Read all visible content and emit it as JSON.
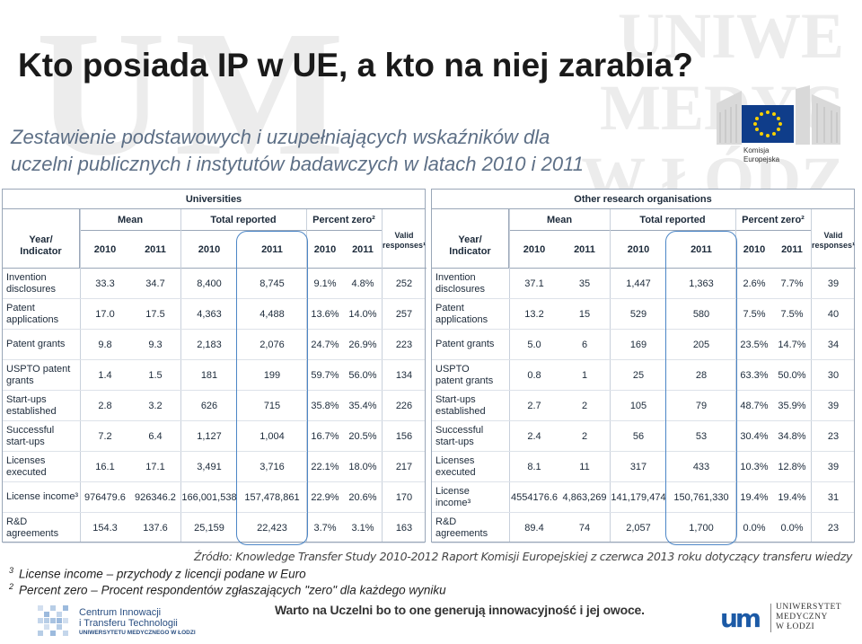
{
  "watermark": {
    "left": "UM",
    "right_lines": [
      "UNIWE",
      "MEDYC",
      "W ŁÓDZ"
    ]
  },
  "title": "Kto posiada IP w UE, a kto na niej zarabia?",
  "subtitle": "Zestawienie podstawowych i uzupełniających wskaźników dla uczelni publicznych i instytutów badawczych w latach 2010 i 2011",
  "ec_logo": {
    "caption_line1": "Komisja",
    "caption_line2": "Europejska"
  },
  "tables": [
    {
      "band": "Universities",
      "groups": {
        "mean": "Mean",
        "total": "Total reported",
        "percent": "Percent zero²",
        "valid": "Valid responses¹"
      },
      "indicator_header": [
        "Year/",
        "Indicator"
      ],
      "years": [
        "2010",
        "2011",
        "2010",
        "2011",
        "2010",
        "2011"
      ],
      "rows": [
        {
          "indicator": [
            "Invention",
            "disclosures"
          ],
          "cells": [
            "33.3",
            "34.7",
            "8,400",
            "8,745",
            "9.1%",
            "4.8%",
            "252"
          ]
        },
        {
          "indicator": [
            "Patent",
            "applications"
          ],
          "cells": [
            "17.0",
            "17.5",
            "4,363",
            "4,488",
            "13.6%",
            "14.0%",
            "257"
          ]
        },
        {
          "indicator": [
            "Patent grants",
            ""
          ],
          "cells": [
            "9.8",
            "9.3",
            "2,183",
            "2,076",
            "24.7%",
            "26.9%",
            "223"
          ]
        },
        {
          "indicator": [
            "USPTO patent",
            "grants"
          ],
          "cells": [
            "1.4",
            "1.5",
            "181",
            "199",
            "59.7%",
            "56.0%",
            "134"
          ]
        },
        {
          "indicator": [
            "Start-ups",
            "established"
          ],
          "cells": [
            "2.8",
            "3.2",
            "626",
            "715",
            "35.8%",
            "35.4%",
            "226"
          ]
        },
        {
          "indicator": [
            "Successful",
            "start-ups"
          ],
          "cells": [
            "7.2",
            "6.4",
            "1,127",
            "1,004",
            "16.7%",
            "20.5%",
            "156"
          ]
        },
        {
          "indicator": [
            "Licenses",
            "executed"
          ],
          "cells": [
            "16.1",
            "17.1",
            "3,491",
            "3,716",
            "22.1%",
            "18.0%",
            "217"
          ]
        },
        {
          "indicator": [
            "License income³",
            ""
          ],
          "cells": [
            "976479.6",
            "926346.2",
            "166,001,538",
            "157,478,861",
            "22.9%",
            "20.6%",
            "170"
          ]
        },
        {
          "indicator": [
            "R&D",
            "agreements"
          ],
          "cells": [
            "154.3",
            "137.6",
            "25,159",
            "22,423",
            "3.7%",
            "3.1%",
            "163"
          ]
        }
      ]
    },
    {
      "band": "Other research organisations",
      "groups": {
        "mean": "Mean",
        "total": "Total reported",
        "percent": "Percent zero²",
        "valid": "Valid responses¹"
      },
      "indicator_header": [
        "Year/",
        "Indicator"
      ],
      "years": [
        "2010",
        "2011",
        "2010",
        "2011",
        "2010",
        "2011"
      ],
      "rows": [
        {
          "indicator": [
            "Invention",
            "disclosures"
          ],
          "cells": [
            "37.1",
            "35",
            "1,447",
            "1,363",
            "2.6%",
            "7.7%",
            "39"
          ]
        },
        {
          "indicator": [
            "Patent",
            "applications"
          ],
          "cells": [
            "13.2",
            "15",
            "529",
            "580",
            "7.5%",
            "7.5%",
            "40"
          ]
        },
        {
          "indicator": [
            "Patent grants",
            ""
          ],
          "cells": [
            "5.0",
            "6",
            "169",
            "205",
            "23.5%",
            "14.7%",
            "34"
          ]
        },
        {
          "indicator": [
            "USPTO",
            "patent grants"
          ],
          "cells": [
            "0.8",
            "1",
            "25",
            "28",
            "63.3%",
            "50.0%",
            "30"
          ]
        },
        {
          "indicator": [
            "Start-ups",
            "established"
          ],
          "cells": [
            "2.7",
            "2",
            "105",
            "79",
            "48.7%",
            "35.9%",
            "39"
          ]
        },
        {
          "indicator": [
            "Successful",
            "start-ups"
          ],
          "cells": [
            "2.4",
            "2",
            "56",
            "53",
            "30.4%",
            "34.8%",
            "23"
          ]
        },
        {
          "indicator": [
            "Licenses",
            "executed"
          ],
          "cells": [
            "8.1",
            "11",
            "317",
            "433",
            "10.3%",
            "12.8%",
            "39"
          ]
        },
        {
          "indicator": [
            "License",
            "income³"
          ],
          "cells": [
            "4554176.6",
            "4,863,269",
            "141,179,474",
            "150,761,330",
            "19.4%",
            "19.4%",
            "31"
          ]
        },
        {
          "indicator": [
            "R&D",
            "agreements"
          ],
          "cells": [
            "89.4",
            "74",
            "2,057",
            "1,700",
            "0.0%",
            "0.0%",
            "23"
          ]
        }
      ]
    }
  ],
  "source": "Źródło: Knowledge Transfer Study 2010-2012 Raport Komisji Europejskiej z  czerwca 2013 roku dotyczący transferu wiedzy",
  "notes": [
    {
      "sup": "3",
      "text": "License income –  przychody z licencji podane w Euro"
    },
    {
      "sup": "2",
      "text": "Percent zero –  Procent respondentów zgłaszających \"zero\" dla każdego wyniku"
    }
  ],
  "footer": {
    "left_logo_line1": "Centrum Innowacji",
    "left_logo_line2": "i Transferu Technologii",
    "left_logo_line3": "UNIWERSYTETU MEDYCZNEGO W ŁODZI",
    "slogan": "Warto na Uczelni bo to one generują innowacyjność i jej owoce.",
    "right_logo_mark": "um",
    "right_logo_line1": "UNIWERSYTET",
    "right_logo_line2": "MEDYCZNY",
    "right_logo_line3": "W ŁODZI"
  },
  "colors": {
    "highlight": "#4c86c6",
    "subtitle": "#5d6f86",
    "ec_flag": "#0f3d8a",
    "um_blue": "#1c5aa6"
  }
}
